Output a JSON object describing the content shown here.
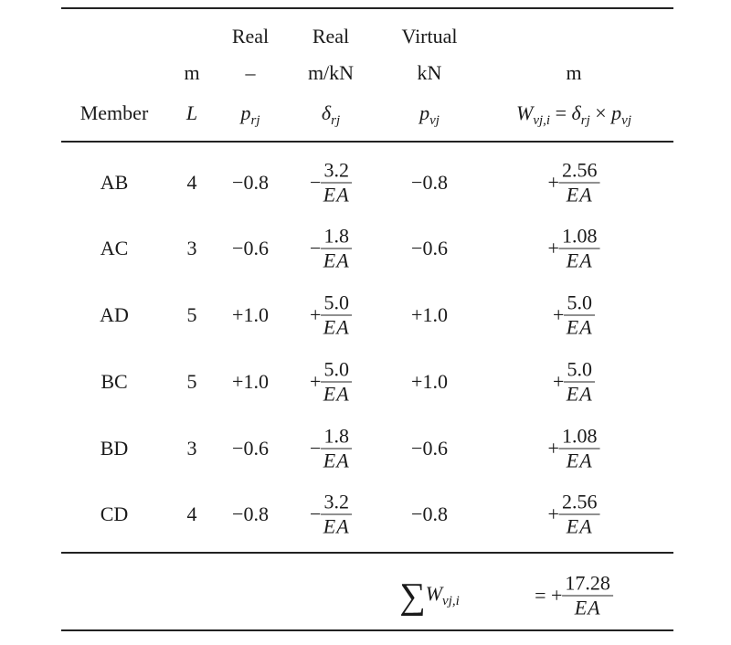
{
  "header": {
    "row1": {
      "p_rj": "Real",
      "delta_rj": "Real",
      "p_vj": "Virtual"
    },
    "row2": {
      "L": "m",
      "p_rj": "–",
      "delta_rj": "m/kN",
      "p_vj": "kN",
      "W": "m"
    },
    "row3": {
      "member": "Member",
      "L": "L",
      "p_rj_sym": "p",
      "p_rj_sub": "rj",
      "delta_sym": "δ",
      "delta_sub": "rj",
      "p_vj_sym": "p",
      "p_vj_sub": "vj",
      "W_sym": "W",
      "W_sub": "vj,i",
      "W_eq": " = ",
      "W_times": " × "
    }
  },
  "rows": [
    {
      "member": "AB",
      "L": "4",
      "p_rj": "−0.8",
      "delta_sign": "−",
      "delta_num": "3.2",
      "den": "EA",
      "p_vj": "−0.8",
      "W_sign": "+",
      "W_num": "2.56"
    },
    {
      "member": "AC",
      "L": "3",
      "p_rj": "−0.6",
      "delta_sign": "−",
      "delta_num": "1.8",
      "den": "EA",
      "p_vj": "−0.6",
      "W_sign": "+",
      "W_num": "1.08"
    },
    {
      "member": "AD",
      "L": "5",
      "p_rj": "+1.0",
      "delta_sign": "+",
      "delta_num": "5.0",
      "den": "EA",
      "p_vj": "+1.0",
      "W_sign": "+",
      "W_num": "5.0"
    },
    {
      "member": "BC",
      "L": "5",
      "p_rj": "+1.0",
      "delta_sign": "+",
      "delta_num": "5.0",
      "den": "EA",
      "p_vj": "+1.0",
      "W_sign": "+",
      "W_num": "5.0"
    },
    {
      "member": "BD",
      "L": "3",
      "p_rj": "−0.6",
      "delta_sign": "−",
      "delta_num": "1.8",
      "den": "EA",
      "p_vj": "−0.6",
      "W_sign": "+",
      "W_num": "1.08"
    },
    {
      "member": "CD",
      "L": "4",
      "p_rj": "−0.8",
      "delta_sign": "−",
      "delta_num": "3.2",
      "den": "EA",
      "p_vj": "−0.8",
      "W_sign": "+",
      "W_num": "2.56"
    }
  ],
  "total": {
    "sigma": "∑",
    "W_sym": "W",
    "W_sub": "vj,i",
    "sign": "= +",
    "num": "17.28",
    "den": "EA"
  }
}
